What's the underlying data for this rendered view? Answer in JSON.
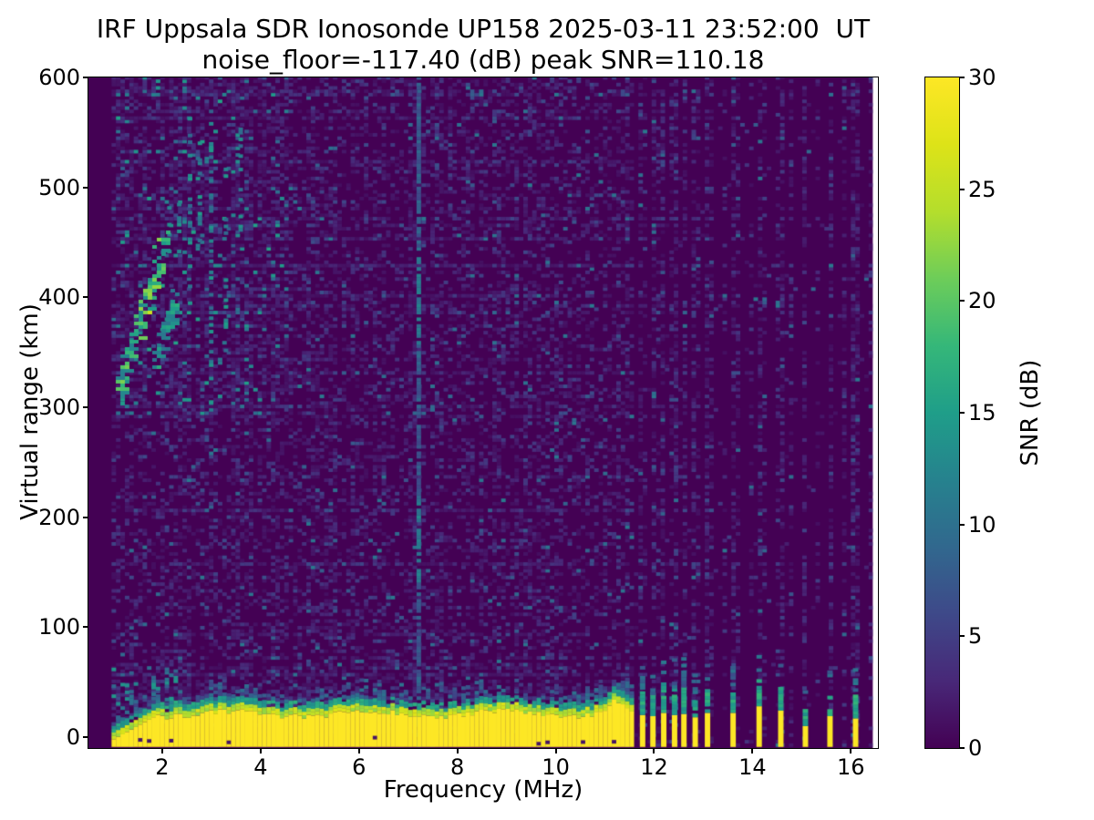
{
  "chart_data": {
    "type": "heatmap",
    "title": "IRF Uppsala SDR Ionosonde UP158 2025-03-11 23:52:00  UT",
    "subtitle": "noise_floor=-117.40 (dB) peak SNR=110.18",
    "xlabel": "Frequency (MHz)",
    "ylabel": "Virtual range (km)",
    "xlim": [
      0.5,
      16.55
    ],
    "ylim": [
      -10,
      600
    ],
    "xticks": [
      2,
      4,
      6,
      8,
      10,
      12,
      14,
      16
    ],
    "yticks": [
      0,
      100,
      200,
      300,
      400,
      500,
      600
    ],
    "noise_floor_db": -117.4,
    "peak_snr_db": 110.18,
    "colorbar": {
      "label": "SNR (dB)",
      "min": 0,
      "max": 30,
      "ticks": [
        0,
        5,
        10,
        15,
        20,
        25,
        30
      ],
      "colormap": "viridis",
      "stops": [
        "#440154",
        "#482878",
        "#3e4989",
        "#31688e",
        "#26828e",
        "#1f9e89",
        "#35b779",
        "#6dcd59",
        "#b4de2c",
        "#dde318",
        "#fde725"
      ]
    },
    "data_extent": {
      "freq_mhz": [
        0.97,
        16.45
      ],
      "range_km": [
        -9,
        600
      ]
    },
    "features": {
      "ground_echo_band": {
        "f_start": 0.97,
        "f_end": 11.58,
        "taper_start_km": -2,
        "taper_end_mhz": 1.9,
        "base_top_km": 21,
        "bump_center_mhz": 11.15,
        "bump_extra_km": 10,
        "bump_width_mhz": 0.22,
        "fringe_km": 7,
        "speckle_above_km": 18,
        "snr_db": 30
      },
      "rfi_bars": [
        {
          "f": 11.71,
          "yellow_top_km": 20,
          "cap_top_km": 40
        },
        {
          "f": 11.92,
          "yellow_top_km": 19,
          "cap_top_km": 38
        },
        {
          "f": 12.14,
          "yellow_top_km": 22,
          "cap_top_km": 48
        },
        {
          "f": 12.36,
          "yellow_top_km": 20,
          "cap_top_km": 44
        },
        {
          "f": 12.55,
          "yellow_top_km": 21,
          "cap_top_km": 45
        },
        {
          "f": 12.78,
          "yellow_top_km": 18,
          "cap_top_km": 36
        },
        {
          "f": 13.03,
          "yellow_top_km": 22,
          "cap_top_km": 42
        },
        {
          "f": 13.55,
          "yellow_top_km": 22,
          "cap_top_km": 40
        },
        {
          "f": 14.08,
          "yellow_top_km": 28,
          "cap_top_km": 50
        },
        {
          "f": 14.52,
          "yellow_top_km": 24,
          "cap_top_km": 45
        },
        {
          "f": 15.02,
          "yellow_top_km": 10,
          "cap_top_km": 24
        },
        {
          "f": 15.52,
          "yellow_top_km": 19,
          "cap_top_km": 36
        },
        {
          "f": 16.04,
          "yellow_top_km": 17,
          "cap_top_km": 38
        }
      ],
      "rfi_vertical_line": {
        "f": 7.17,
        "km": [
          -9,
          600
        ],
        "snr_db": 9,
        "bright_segments_km": [
          [
            140,
            215
          ],
          [
            355,
            445
          ]
        ]
      },
      "ionospheric_echo_traces": [
        {
          "points_mhz_km": [
            [
              1.12,
              316
            ],
            [
              1.2,
              330
            ],
            [
              1.28,
              344
            ],
            [
              1.36,
              358
            ],
            [
              1.45,
              372
            ],
            [
              1.54,
              386
            ],
            [
              1.63,
              399
            ],
            [
              1.72,
              411
            ],
            [
              1.81,
              423
            ],
            [
              1.9,
              436
            ],
            [
              1.99,
              449
            ]
          ],
          "snr_db": [
            11,
            22
          ],
          "bright": {
            "f": [
              1.5,
              1.98
            ],
            "km": [
              380,
              438
            ],
            "boost_db": 6
          }
        },
        {
          "points_mhz_km": [
            [
              1.84,
              344
            ],
            [
              1.93,
              357
            ],
            [
              2.02,
              370
            ],
            [
              2.11,
              383
            ],
            [
              2.2,
              396
            ]
          ],
          "snr_db": [
            10,
            17
          ]
        }
      ],
      "spread_f_columns": [
        [
          2.52,
          390,
          575
        ],
        [
          2.3,
          440,
          495
        ],
        [
          2.72,
          450,
          540
        ],
        [
          2.95,
          300,
          560
        ],
        [
          3.25,
          350,
          520
        ],
        [
          3.55,
          420,
          560
        ],
        [
          2.1,
          440,
          480
        ]
      ],
      "noise_texture": {
        "cell_mhz": 0.09,
        "cell_km": 3.05,
        "dash_prob": 0.3,
        "row_boost_prob": 0.16,
        "row_boost_factor": 2.1,
        "quiet_above_mhz": 11.58,
        "channel_col_period": 3,
        "typical_db": [
          1,
          7
        ],
        "enhanced_region": {
          "f": [
            1.0,
            4.6
          ],
          "km": [
            290,
            600
          ],
          "factor": 1.5,
          "teal_prob": 0.08,
          "teal_db": [
            9,
            16
          ]
        },
        "band_edge_boost_km": [
          25,
          65
        ]
      }
    }
  }
}
